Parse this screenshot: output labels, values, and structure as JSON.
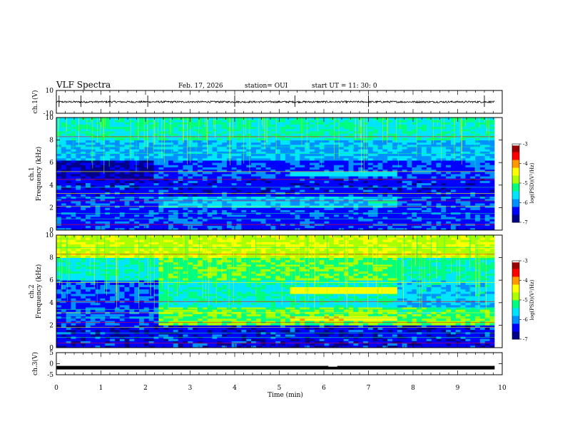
{
  "header": {
    "title": "VLF Spectra",
    "date": "Feb. 17, 2026",
    "station": "station= OUI",
    "start": "start  UT  =   11: 30: 0"
  },
  "colors": {
    "c0": "#00008b",
    "c1": "#0000ff",
    "c2": "#0090ff",
    "c3": "#00e5ff",
    "c4": "#00ff80",
    "c5": "#aaff00",
    "c6": "#ffff00",
    "c7": "#ff9900",
    "c8": "#ff0000",
    "c9": "#990000",
    "trace": "#000000"
  },
  "chart_data": [
    {
      "id": "ch1-waveform",
      "type": "line",
      "ylabel": "ch.1(V)",
      "ylim": [
        -10,
        10
      ],
      "yticks": [
        "10",
        "-10"
      ],
      "baseline": 0,
      "spikes": [
        0.06,
        0.55,
        1.2,
        2.05,
        4.0,
        5.35,
        7.0,
        9.6
      ]
    },
    {
      "id": "ch1-spectrogram",
      "type": "heatmap",
      "ylabel": "ch.1\nFrequency  (kHz)",
      "ylim": [
        0,
        10
      ],
      "yticks": [
        "0",
        "2",
        "4",
        "6",
        "8",
        "10"
      ],
      "colorbar": {
        "label": "log(PSD)(V²/Hz)",
        "ticks": [
          "-3",
          "-4",
          "-5",
          "-6",
          "-7"
        ],
        "range": [
          -7,
          -3
        ]
      }
    },
    {
      "id": "ch2-spectrogram",
      "type": "heatmap",
      "ylabel": "ch.2\nFrequency  (kHz)",
      "ylim": [
        0,
        10
      ],
      "yticks": [
        "0",
        "2",
        "4",
        "6",
        "8",
        "10"
      ],
      "colorbar": {
        "label": "log(PSD)(V²/Hz)",
        "ticks": [
          "-3",
          "-4",
          "-5",
          "-6",
          "-7"
        ],
        "range": [
          -7,
          -3
        ]
      }
    },
    {
      "id": "ch3-waveform",
      "type": "line",
      "ylabel": "ch.3(V)",
      "ylim": [
        -5,
        5
      ],
      "yticks": [
        "5",
        "0",
        "-5"
      ],
      "baseline": -1.8
    }
  ],
  "xaxis": {
    "label": "Time  (min)",
    "range": [
      0,
      10
    ],
    "data_end": 9.83,
    "ticks": [
      "0",
      "1",
      "2",
      "3",
      "4",
      "5",
      "6",
      "7",
      "8",
      "9",
      "10"
    ]
  }
}
